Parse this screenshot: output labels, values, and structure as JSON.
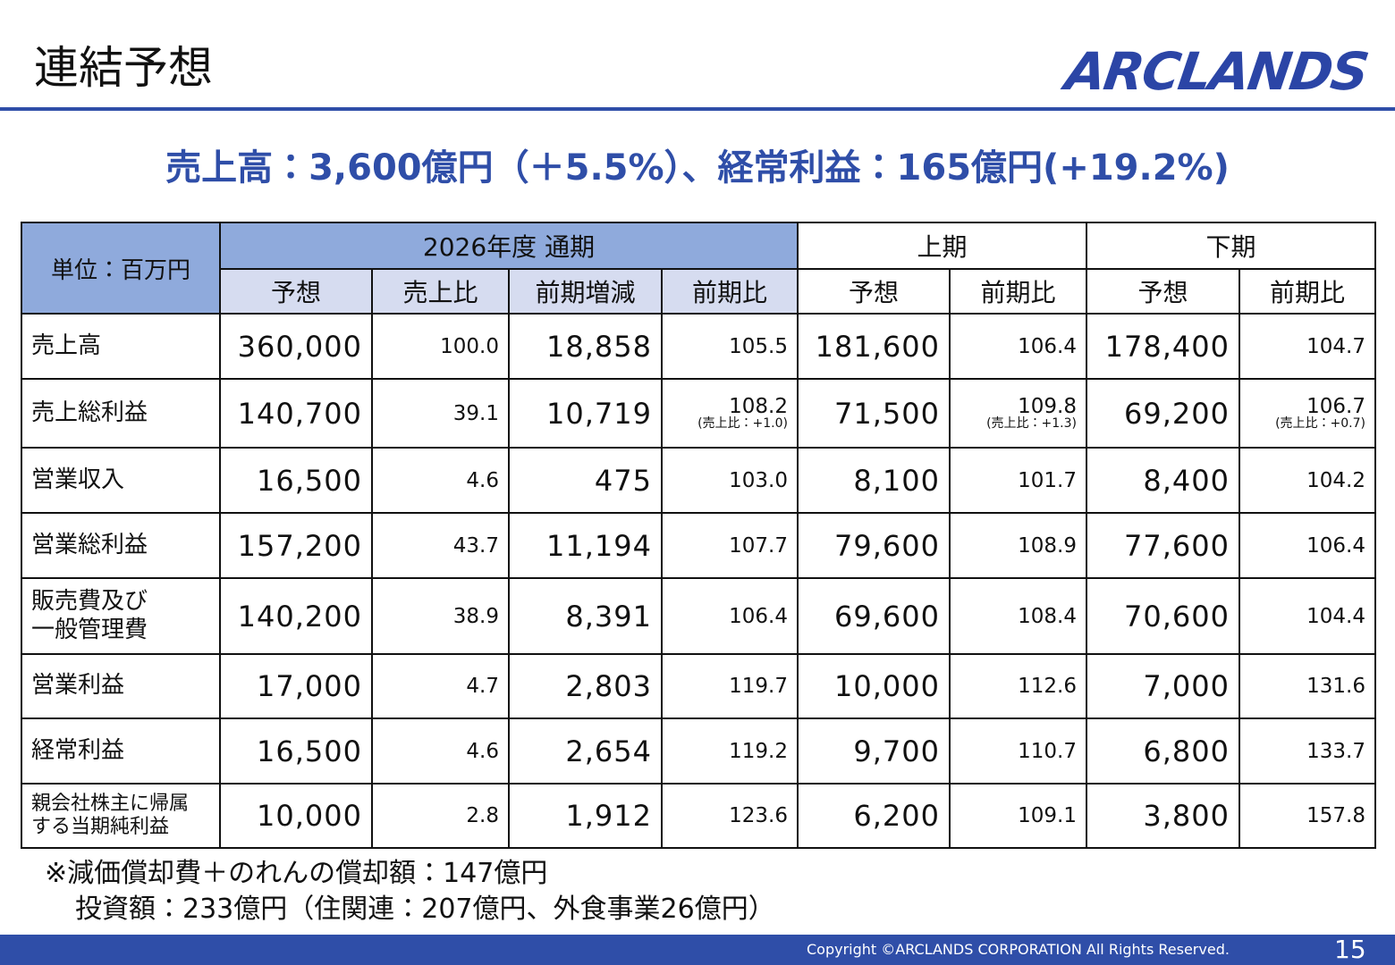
{
  "header": {
    "title": "連結予想",
    "logo": "ARCLANDS"
  },
  "headline": "売上高：3,600億円（＋5.5%）、経常利益：165億円(+19.2%)",
  "table": {
    "unit": "単位：百万円",
    "groups": [
      "2026年度 通期",
      "上期",
      "下期"
    ],
    "columns": [
      "予想",
      "売上比",
      "前期増減",
      "前期比",
      "予想",
      "前期比",
      "予想",
      "前期比"
    ],
    "rows": [
      {
        "label": "売上高",
        "cells": [
          "360,000",
          "100.0",
          "18,858",
          "105.5",
          "181,600",
          "106.4",
          "178,400",
          "104.7"
        ]
      },
      {
        "label": "売上総利益",
        "cells": [
          "140,700",
          "39.1",
          "10,719",
          {
            "value": "108.2",
            "note": "(売上比：+1.0)"
          },
          "71,500",
          {
            "value": "109.8",
            "note": "(売上比：+1.3)"
          },
          "69,200",
          {
            "value": "106.7",
            "note": "(売上比：+0.7)"
          }
        ]
      },
      {
        "label": "営業収入",
        "cells": [
          "16,500",
          "4.6",
          "475",
          "103.0",
          "8,100",
          "101.7",
          "8,400",
          "104.2"
        ]
      },
      {
        "label": "営業総利益",
        "cells": [
          "157,200",
          "43.7",
          "11,194",
          "107.7",
          "79,600",
          "108.9",
          "77,600",
          "106.4"
        ]
      },
      {
        "label": "販売費及び\n一般管理費",
        "cells": [
          "140,200",
          "38.9",
          "8,391",
          "106.4",
          "69,600",
          "108.4",
          "70,600",
          "104.4"
        ]
      },
      {
        "label": "営業利益",
        "cells": [
          "17,000",
          "4.7",
          "2,803",
          "119.7",
          "10,000",
          "112.6",
          "7,000",
          "131.6"
        ]
      },
      {
        "label": "経常利益",
        "cells": [
          "16,500",
          "4.6",
          "2,654",
          "119.2",
          "9,700",
          "110.7",
          "6,800",
          "133.7"
        ]
      },
      {
        "label": "親会社株主に帰属\nする当期純利益",
        "cells": [
          "10,000",
          "2.8",
          "1,912",
          "123.6",
          "6,200",
          "109.1",
          "3,800",
          "157.8"
        ]
      }
    ]
  },
  "notes": [
    "※減価償却費＋のれんの償却額：147億円",
    "投資額：233億円（住関連：207億円、外食事業26億円）"
  ],
  "footer": {
    "copyright": "Copyright ©ARCLANDS CORPORATION All Rights Reserved.",
    "page": "15"
  }
}
